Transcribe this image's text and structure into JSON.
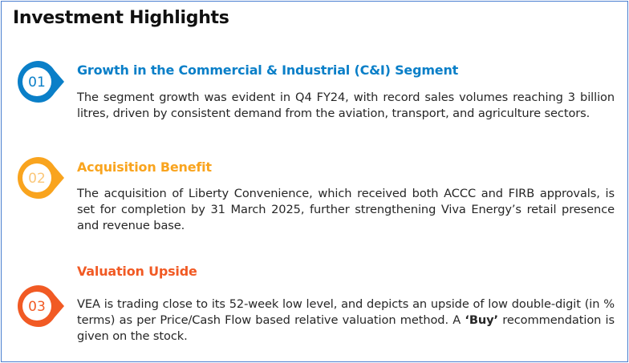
{
  "title": "Investment Highlights",
  "items": [
    {
      "number": "01",
      "color": "#0a7fc8",
      "heading": "Growth in the Commercial & Industrial (C&I) Segment",
      "text": "The segment growth was evident in Q4 FY24, with record sales volumes reaching 3 billion litres, driven by consistent demand from the aviation, transport, and agriculture sectors."
    },
    {
      "number": "02",
      "color": "#f9a41e",
      "heading": "Acquisition Benefit",
      "text": "The acquisition of Liberty Convenience, which received both ACCC and FIRB approvals, is set for completion by 31 March 2025, further strengthening Viva Energy’s retail presence and revenue base."
    },
    {
      "number": "03",
      "color": "#f15a24",
      "heading": "Valuation Upside",
      "text_before": "VEA is trading close to its 52-week low level, and depicts an upside of low double-digit (in % terms) as per Price/Cash Flow based relative valuation method. A ",
      "text_bold": "‘Buy’",
      "text_after": " recommendation is given on the stock."
    }
  ]
}
